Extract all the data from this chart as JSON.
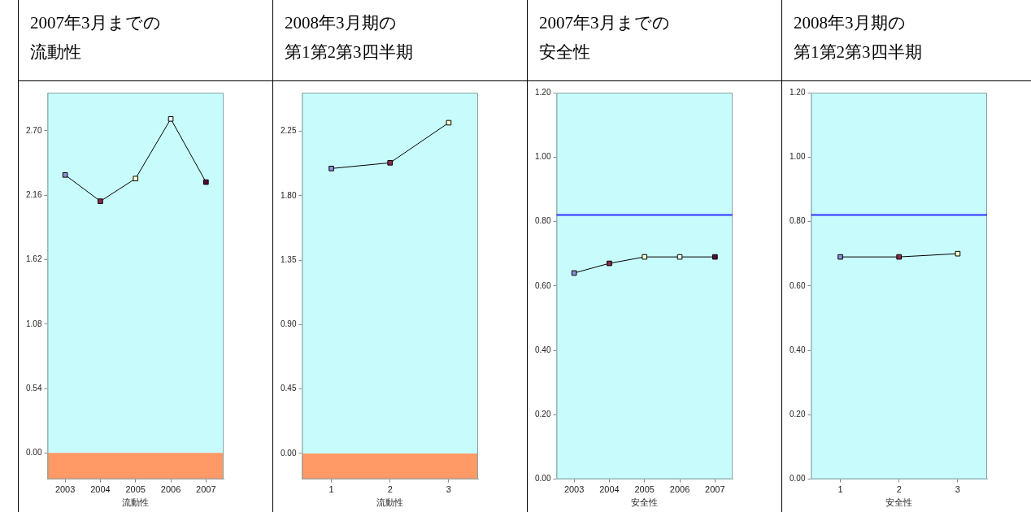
{
  "chart_data": [
    {
      "type": "line",
      "title": "2007年3月までの",
      "subtitle": "流動性",
      "xlabel": "流動性",
      "categories": [
        "2003",
        "2004",
        "2005",
        "2006",
        "2007"
      ],
      "series": [
        {
          "color": "#000000",
          "colors": [
            "#8f8fd8",
            "#8b2a4a",
            "#ffffcc",
            "#eefefe",
            "#5a0a3a"
          ],
          "values": [
            2.33,
            2.11,
            2.3,
            2.8,
            2.27
          ]
        }
      ],
      "ylim": [
        -0.22,
        3.02
      ],
      "yticks": [
        {
          "value": 0,
          "label": "0.00"
        },
        {
          "value": 0.54,
          "label": "0.54"
        },
        {
          "value": 1.08,
          "label": "1.08"
        },
        {
          "value": 1.62,
          "label": "1.62"
        },
        {
          "value": 2.16,
          "label": "2.16"
        },
        {
          "value": 2.7,
          "label": "2.70"
        }
      ],
      "bands": [
        {
          "axis": "y",
          "from": 0,
          "to": 3.02,
          "color": "#c8fcfc"
        },
        {
          "axis": "y",
          "from": -0.22,
          "to": 0,
          "color": "#ff9966"
        }
      ],
      "marker": "square",
      "grid": false,
      "legend": false
    },
    {
      "type": "line",
      "title": "2008年3月期の",
      "subtitle": "第1第2第3四半期",
      "xlabel": "流動性",
      "categories": [
        "1",
        "2",
        "3"
      ],
      "series": [
        {
          "color": "#000000",
          "colors": [
            "#8f8fd8",
            "#8b2a4a",
            "#ffffcc"
          ],
          "values": [
            1.99,
            2.03,
            2.31
          ]
        }
      ],
      "ylim": [
        -0.18,
        2.52
      ],
      "yticks": [
        {
          "value": 0,
          "label": "0.00"
        },
        {
          "value": 0.45,
          "label": "0.45"
        },
        {
          "value": 0.9,
          "label": "0.90"
        },
        {
          "value": 1.35,
          "label": "1.35"
        },
        {
          "value": 1.8,
          "label": "1.80"
        },
        {
          "value": 2.25,
          "label": "2.25"
        }
      ],
      "bands": [
        {
          "axis": "y",
          "from": 0,
          "to": 2.52,
          "color": "#c8fcfc"
        },
        {
          "axis": "y",
          "from": -0.18,
          "to": 0,
          "color": "#ff9966"
        }
      ],
      "marker": "square",
      "grid": false,
      "legend": false
    },
    {
      "type": "line",
      "title": "2007年3月までの",
      "subtitle": "安全性",
      "xlabel": "安全性",
      "categories": [
        "2003",
        "2004",
        "2005",
        "2006",
        "2007"
      ],
      "series": [
        {
          "color": "#000000",
          "colors": [
            "#8f8fd8",
            "#8b2a4a",
            "#ffffcc",
            "#eefefe",
            "#5a0a3a"
          ],
          "values": [
            0.64,
            0.67,
            0.69,
            0.69,
            0.69
          ]
        }
      ],
      "ylim": [
        0,
        1.2
      ],
      "yticks": [
        {
          "value": 0,
          "label": "0.00"
        },
        {
          "value": 0.2,
          "label": "0.20"
        },
        {
          "value": 0.4,
          "label": "0.40"
        },
        {
          "value": 0.6,
          "label": "0.60"
        },
        {
          "value": 0.8,
          "label": "0.80"
        },
        {
          "value": 1,
          "label": "1.00"
        },
        {
          "value": 1.2,
          "label": "1.20"
        }
      ],
      "bands": [
        {
          "axis": "y",
          "from": 0,
          "to": 1.2,
          "color": "#c8fcfc"
        }
      ],
      "ref_lines": [
        {
          "axis": "y",
          "value": 0.82,
          "color": "#3333ff"
        }
      ],
      "marker": "square",
      "grid": false,
      "legend": false
    },
    {
      "type": "line",
      "title": "2008年3月期の",
      "subtitle": "第1第2第3四半期",
      "xlabel": "安全性",
      "categories": [
        "1",
        "2",
        "3"
      ],
      "series": [
        {
          "color": "#000000",
          "colors": [
            "#8f8fd8",
            "#8b2a4a",
            "#ffffcc"
          ],
          "values": [
            0.69,
            0.69,
            0.7
          ]
        }
      ],
      "ylim": [
        0,
        1.2
      ],
      "yticks": [
        {
          "value": 0,
          "label": "0.00"
        },
        {
          "value": 0.2,
          "label": "0.20"
        },
        {
          "value": 0.4,
          "label": "0.40"
        },
        {
          "value": 0.6,
          "label": "0.60"
        },
        {
          "value": 0.8,
          "label": "0.80"
        },
        {
          "value": 1,
          "label": "1.00"
        },
        {
          "value": 1.2,
          "label": "1.20"
        }
      ],
      "bands": [
        {
          "axis": "y",
          "from": 0,
          "to": 1.2,
          "color": "#c8fcfc"
        }
      ],
      "ref_lines": [
        {
          "axis": "y",
          "value": 0.82,
          "color": "#3333ff"
        }
      ],
      "marker": "square",
      "grid": false,
      "legend": false
    }
  ]
}
